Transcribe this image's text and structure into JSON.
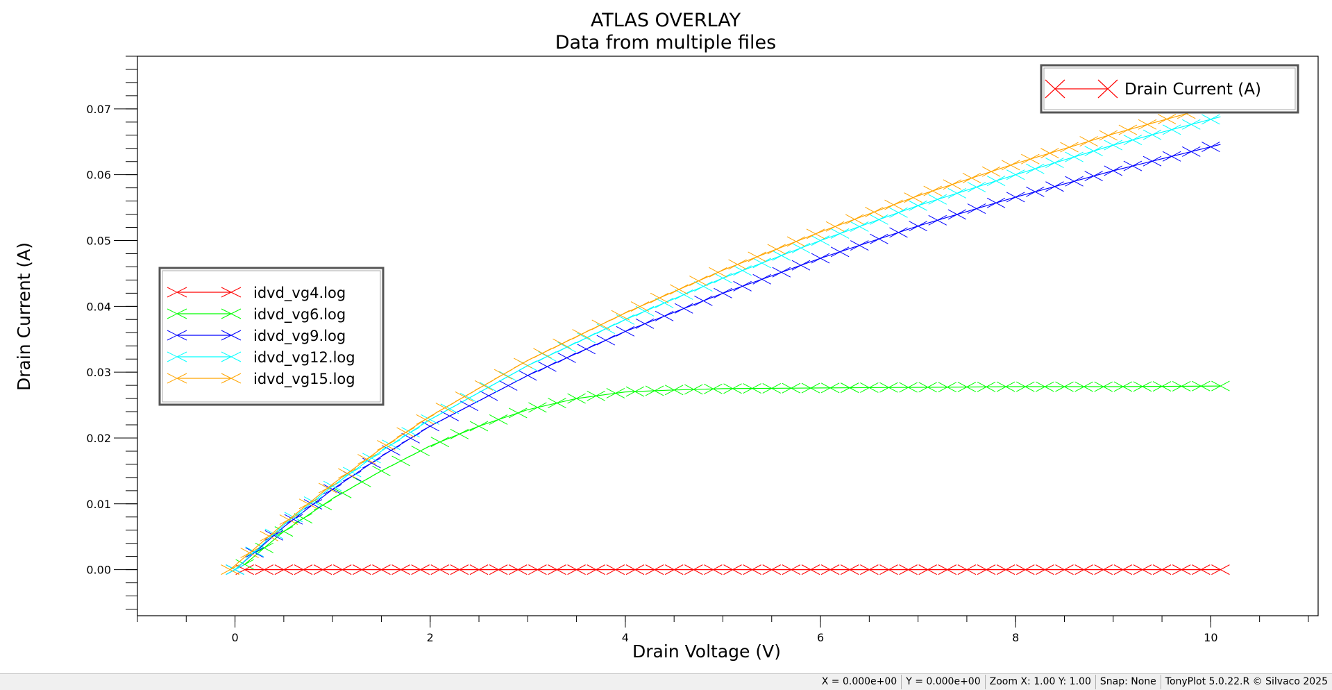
{
  "status_bar": {
    "x_readout": "X = 0.000e+00",
    "y_readout": "Y = 0.000e+00",
    "zoom": "Zoom X: 1.00 Y: 1.00",
    "snap": "Snap: None",
    "version": "TonyPlot 5.0.22.R © Silvaco 2025"
  },
  "chart_data": {
    "type": "line",
    "title": "ATLAS OVERLAY",
    "subtitle": "Data from multiple files",
    "xlabel": "Drain Voltage (V)",
    "ylabel": "Drain Current (A)",
    "xlim": [
      -1,
      11.1
    ],
    "ylim": [
      -0.007,
      0.078
    ],
    "xticks": [
      0,
      2,
      4,
      6,
      8,
      10
    ],
    "xtick_labels": [
      "0",
      "2",
      "4",
      "6",
      "8",
      "10"
    ],
    "yticks": [
      0,
      0.01,
      0.02,
      0.03,
      0.04,
      0.05,
      0.06,
      0.07
    ],
    "ytick_labels": [
      "0.00",
      "0.01",
      "0.02",
      "0.03",
      "0.04",
      "0.05",
      "0.06",
      "0.07"
    ],
    "marker": "x",
    "legend_position": "center-left",
    "quantity_legend": {
      "label": "Drain Current (A)",
      "position": "top-right",
      "color": "#ff0000"
    },
    "series": [
      {
        "name": "idvd_vg4.log",
        "color": "#ff0000",
        "x": [
          0.1,
          0.3,
          0.5,
          1,
          2,
          3,
          4,
          5,
          6,
          7,
          8,
          9,
          10.1
        ],
        "y": [
          0,
          0,
          0,
          0,
          0,
          0,
          0,
          0,
          0,
          0,
          0,
          0,
          0
        ]
      },
      {
        "name": "idvd_vg6.log",
        "color": "#00ff00",
        "x": [
          0.1,
          0.5,
          1,
          1.5,
          2,
          2.5,
          3,
          3.5,
          4,
          4.5,
          5,
          6,
          7,
          8,
          9,
          10.1
        ],
        "y": [
          0.0008,
          0.0058,
          0.0108,
          0.015,
          0.0188,
          0.0218,
          0.0243,
          0.026,
          0.027,
          0.0273,
          0.0275,
          0.0276,
          0.0277,
          0.0278,
          0.0278,
          0.0279
        ]
      },
      {
        "name": "idvd_vg9.log",
        "color": "#0000ff",
        "x": [
          0,
          0.5,
          1,
          1.5,
          2,
          3,
          4,
          5,
          6,
          7,
          8,
          9,
          10.1
        ],
        "y": [
          0,
          0.0065,
          0.0122,
          0.0172,
          0.0218,
          0.0295,
          0.0362,
          0.042,
          0.0473,
          0.0522,
          0.0566,
          0.0606,
          0.0646
        ]
      },
      {
        "name": "idvd_vg12.log",
        "color": "#00ffff",
        "x": [
          0,
          0.5,
          1,
          1.5,
          2,
          3,
          4,
          5,
          6,
          7,
          8,
          9,
          10.1
        ],
        "y": [
          0,
          0.0068,
          0.0127,
          0.018,
          0.0228,
          0.031,
          0.038,
          0.0443,
          0.05,
          0.0553,
          0.06,
          0.0645,
          0.0688
        ]
      },
      {
        "name": "idvd_vg15.log",
        "color": "#ffa500",
        "x": [
          -0.05,
          0.5,
          1,
          1.5,
          2,
          3,
          4,
          5,
          6,
          7,
          8,
          9,
          10.1
        ],
        "y": [
          0,
          0.007,
          0.013,
          0.0184,
          0.0233,
          0.0318,
          0.039,
          0.0455,
          0.0513,
          0.0568,
          0.0617,
          0.0662,
          0.0707
        ]
      }
    ]
  }
}
